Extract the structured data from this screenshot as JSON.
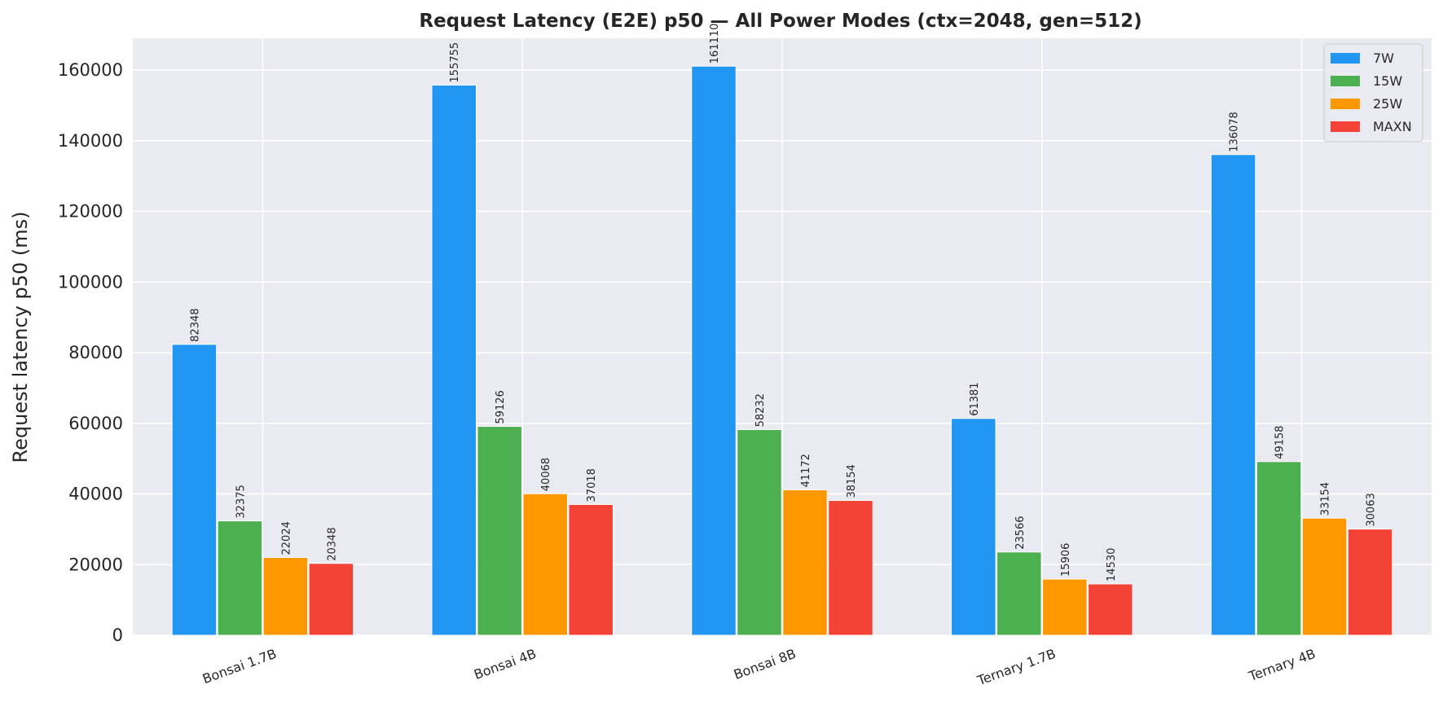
{
  "chart_data": {
    "type": "bar",
    "title": "Request Latency (E2E) p50 — All Power Modes (ctx=2048, gen=512)",
    "xlabel": "",
    "ylabel": "Request latency p50 (ms)",
    "categories": [
      "Bonsai 1.7B",
      "Bonsai 4B",
      "Bonsai 8B",
      "Ternary 1.7B",
      "Ternary 4B"
    ],
    "series": [
      {
        "name": "7W",
        "color": "#2196F3",
        "values": [
          82348,
          155755,
          161110,
          61381,
          136078
        ]
      },
      {
        "name": "15W",
        "color": "#4CAF50",
        "values": [
          32375,
          59126,
          58232,
          23566,
          49158
        ]
      },
      {
        "name": "25W",
        "color": "#FF9800",
        "values": [
          22024,
          40068,
          41172,
          15906,
          33154
        ]
      },
      {
        "name": "MAXN",
        "color": "#F44336",
        "values": [
          20348,
          37018,
          38154,
          14530,
          30063
        ]
      }
    ],
    "ylim": [
      0,
      169000
    ],
    "yticks": [
      0,
      20000,
      40000,
      60000,
      80000,
      100000,
      120000,
      140000,
      160000
    ],
    "grid": true,
    "legend_position": "top-right",
    "background_color": "#EAEAF2"
  }
}
